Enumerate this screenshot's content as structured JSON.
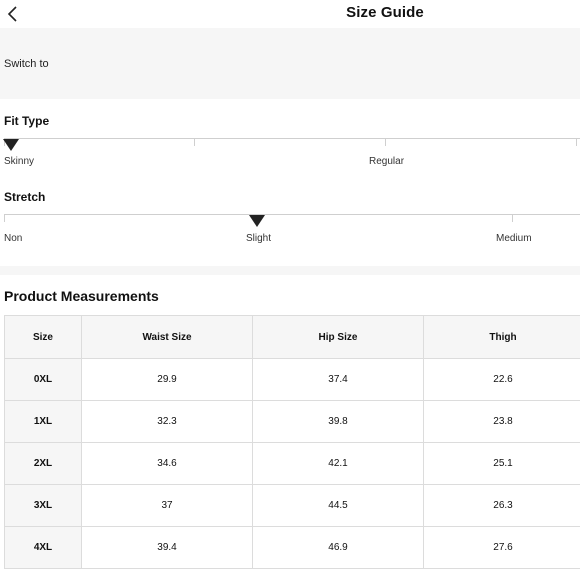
{
  "header": {
    "title": "Size Guide",
    "back_icon": "chevron-left-icon"
  },
  "switch": {
    "label": "Switch to"
  },
  "fit_type": {
    "title": "Fit Type",
    "labels": [
      "Skinny",
      "Regular"
    ],
    "selected": "Skinny"
  },
  "stretch": {
    "title": "Stretch",
    "labels": [
      "Non",
      "Slight",
      "Medium"
    ],
    "selected": "Slight"
  },
  "measurements": {
    "title": "Product Measurements",
    "columns": [
      "Size",
      "Waist Size",
      "Hip Size",
      "Thigh"
    ],
    "rows": [
      [
        "0XL",
        "29.9",
        "37.4",
        "22.6"
      ],
      [
        "1XL",
        "32.3",
        "39.8",
        "23.8"
      ],
      [
        "2XL",
        "34.6",
        "42.1",
        "25.1"
      ],
      [
        "3XL",
        "37",
        "44.5",
        "26.3"
      ],
      [
        "4XL",
        "39.4",
        "46.9",
        "27.6"
      ]
    ]
  }
}
